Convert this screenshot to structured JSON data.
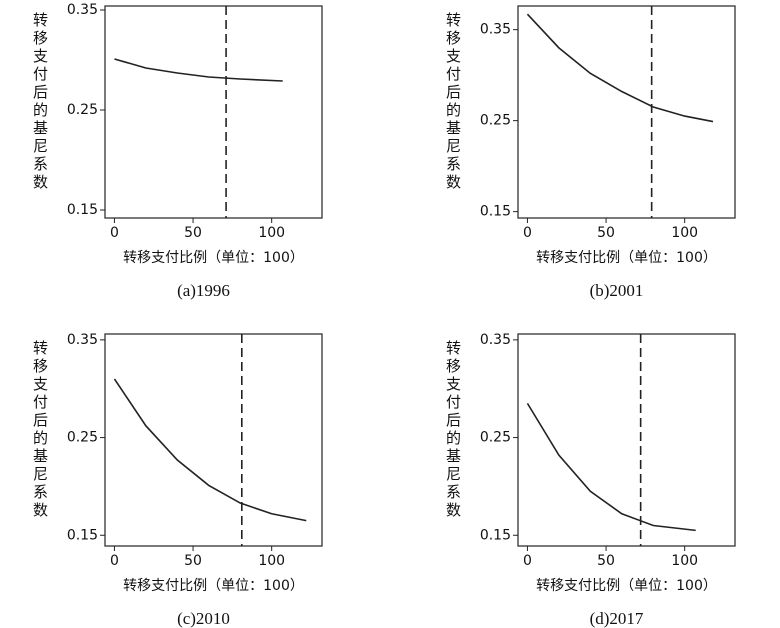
{
  "chart_data": [
    {
      "type": "line",
      "caption": "(a)1996",
      "ylabel": "转移支付后的基尼系数",
      "xlabel": "转移支付比例（单位：100）",
      "x": [
        0,
        20,
        40,
        60,
        80,
        107
      ],
      "values": [
        0.301,
        0.292,
        0.287,
        0.283,
        0.281,
        0.279
      ],
      "color": "#222",
      "vline": 71,
      "xlim": [
        -6,
        132
      ],
      "ylim": [
        0.142,
        0.354
      ],
      "xticks": [
        0,
        50,
        100
      ],
      "yticks": [
        0.15,
        0.25,
        0.35
      ]
    },
    {
      "type": "line",
      "caption": "(b)2001",
      "ylabel": "转移支付后的基尼系数",
      "xlabel": "转移支付比例（单位：100）",
      "x": [
        0,
        20,
        40,
        60,
        80,
        100,
        118
      ],
      "values": [
        0.367,
        0.33,
        0.302,
        0.282,
        0.265,
        0.255,
        0.249
      ],
      "color": "#222",
      "vline": 79,
      "xlim": [
        -6,
        132
      ],
      "ylim": [
        0.143,
        0.376
      ],
      "xticks": [
        0,
        50,
        100
      ],
      "yticks": [
        0.15,
        0.25,
        0.35
      ]
    },
    {
      "type": "line",
      "caption": "(c)2010",
      "ylabel": "转移支付后的基尼系数",
      "xlabel": "转移支付比例（单位：100）",
      "x": [
        0,
        20,
        40,
        60,
        80,
        100,
        122
      ],
      "values": [
        0.31,
        0.262,
        0.227,
        0.201,
        0.183,
        0.172,
        0.165
      ],
      "color": "#222",
      "vline": 81,
      "xlim": [
        -6,
        132
      ],
      "ylim": [
        0.139,
        0.356
      ],
      "xticks": [
        0,
        50,
        100
      ],
      "yticks": [
        0.15,
        0.25,
        0.35
      ]
    },
    {
      "type": "line",
      "caption": "(d)2017",
      "ylabel": "转移支付后的基尼系数",
      "xlabel": "转移支付比例（单位：100）",
      "x": [
        0,
        20,
        40,
        60,
        80,
        107
      ],
      "values": [
        0.285,
        0.232,
        0.195,
        0.172,
        0.16,
        0.155
      ],
      "color": "#222",
      "vline": 72,
      "xlim": [
        -6,
        132
      ],
      "ylim": [
        0.139,
        0.356
      ],
      "xticks": [
        0,
        50,
        100
      ],
      "yticks": [
        0.15,
        0.25,
        0.35
      ]
    }
  ]
}
